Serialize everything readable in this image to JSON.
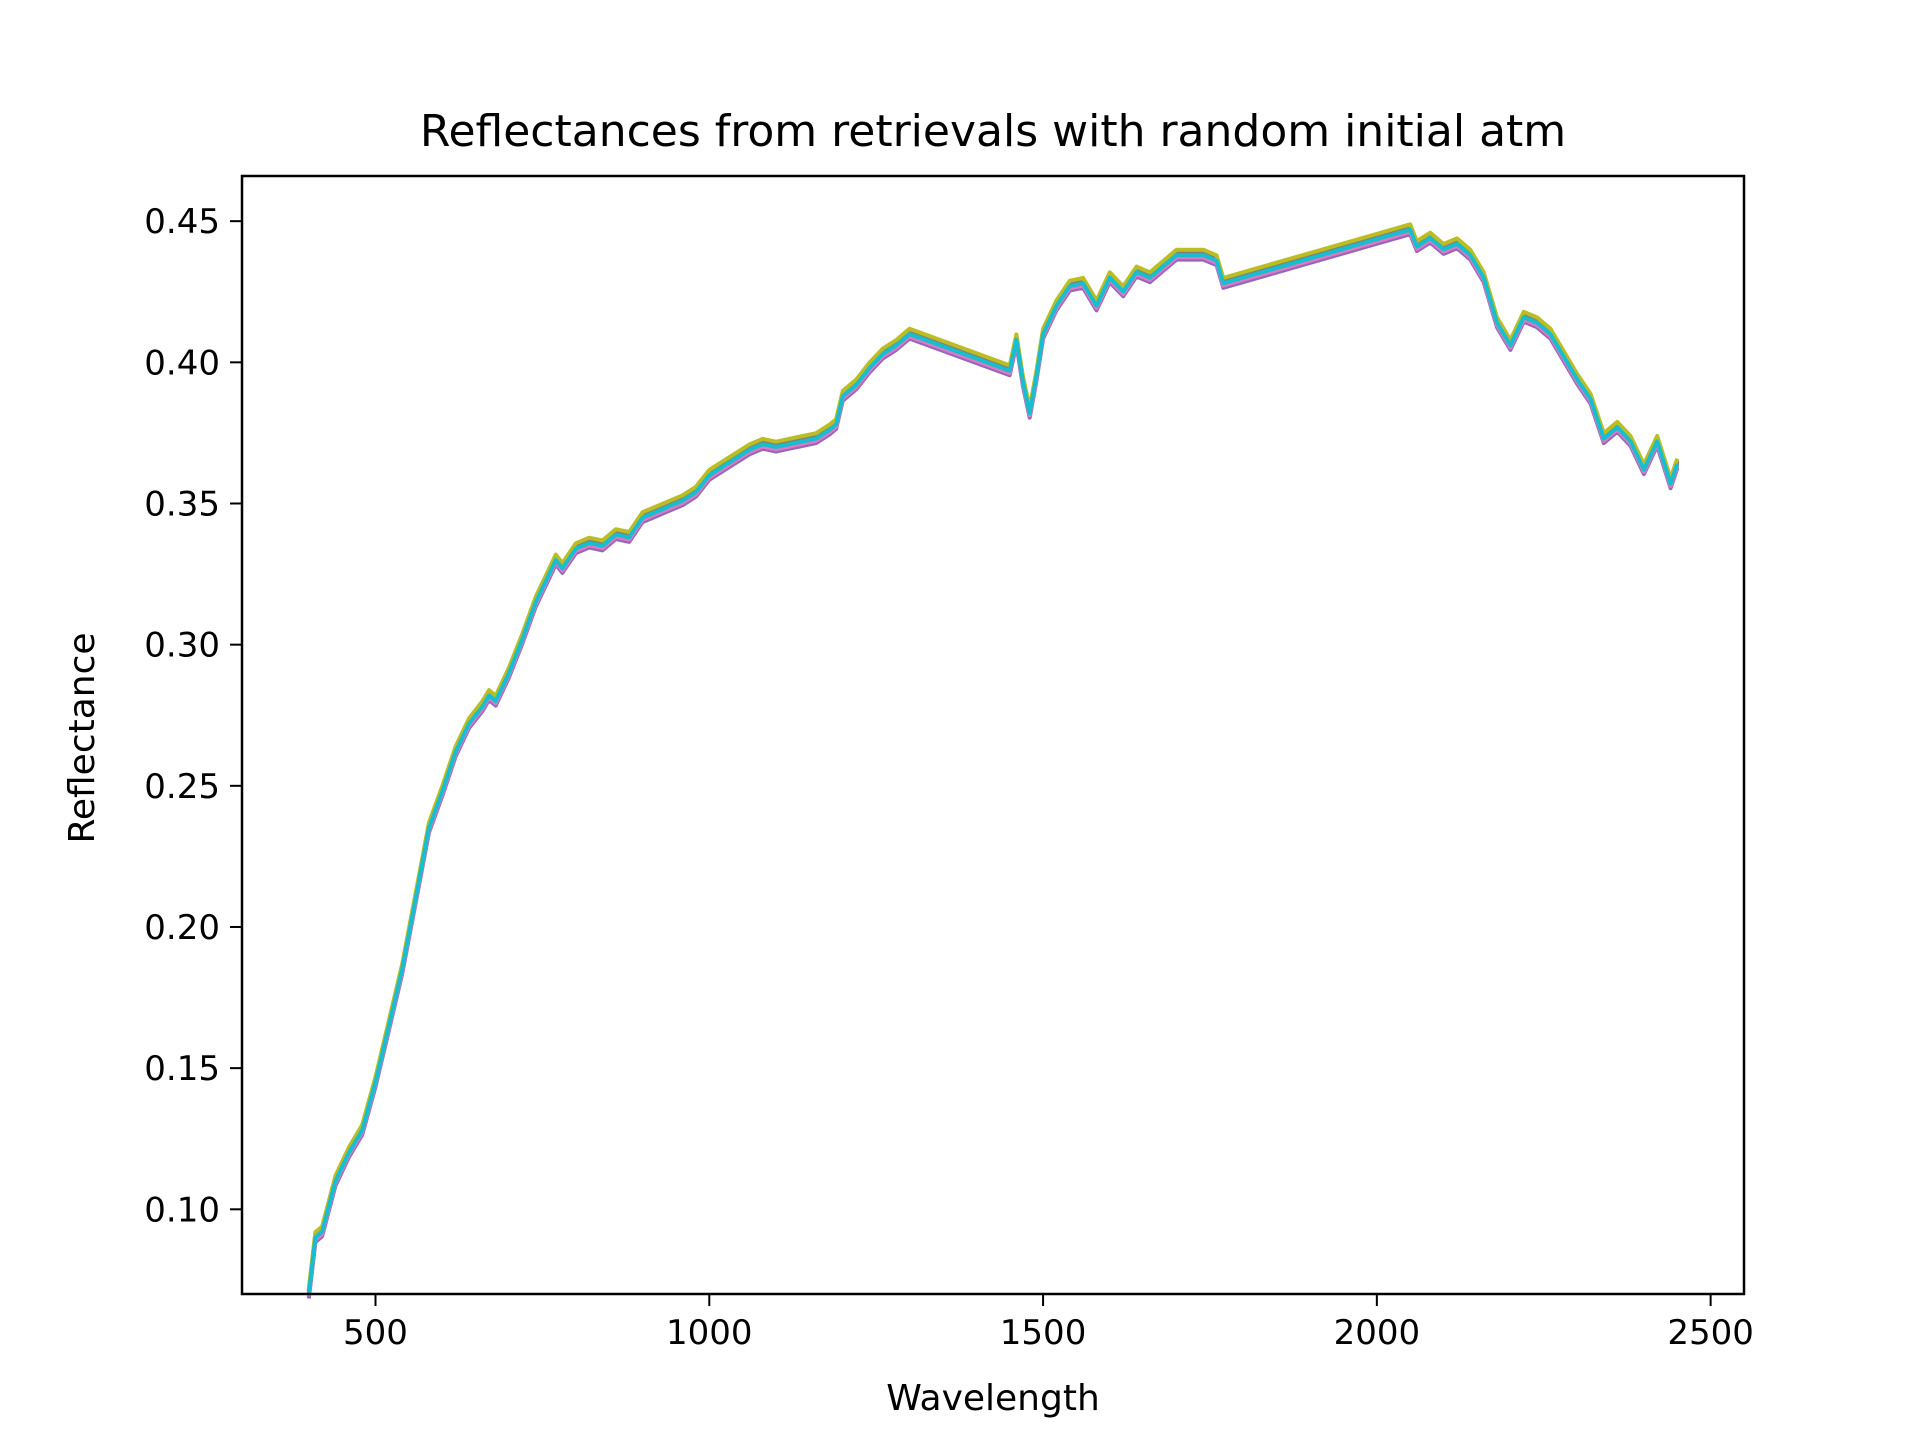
{
  "chart_data": {
    "type": "line",
    "title": "Reflectances from retrievals with random initial atm",
    "xlabel": "Wavelength",
    "ylabel": "Reflectance",
    "xlim": [
      300,
      2550
    ],
    "ylim": [
      0.07,
      0.466
    ],
    "xticks": [
      500,
      1000,
      1500,
      2000,
      2500
    ],
    "xtick_labels": [
      "500",
      "1000",
      "1500",
      "2000",
      "2500"
    ],
    "yticks": [
      0.1,
      0.15,
      0.2,
      0.25,
      0.3,
      0.35,
      0.4,
      0.45
    ],
    "ytick_labels": [
      "0.10",
      "0.15",
      "0.20",
      "0.25",
      "0.30",
      "0.35",
      "0.40",
      "0.45"
    ],
    "grid": false,
    "legend": "none",
    "series_colors": [
      "#1f77b4",
      "#ff7f0e",
      "#2ca02c",
      "#d62728",
      "#9467bd",
      "#8c564b",
      "#e377c2",
      "#7f7f7f",
      "#bcbd22",
      "#17becf"
    ],
    "series_offsets": [
      -0.0012,
      0.0008,
      -0.0004,
      0.0011,
      -0.0016,
      0.0003,
      -0.0008,
      0.0014,
      0.0019,
      0.0
    ],
    "x": [
      400,
      410,
      420,
      440,
      460,
      480,
      500,
      520,
      540,
      560,
      580,
      600,
      620,
      640,
      660,
      670,
      680,
      700,
      720,
      740,
      760,
      770,
      780,
      800,
      820,
      840,
      860,
      880,
      900,
      920,
      940,
      960,
      980,
      1000,
      1020,
      1040,
      1060,
      1080,
      1100,
      1120,
      1140,
      1160,
      1180,
      1190,
      1200,
      1220,
      1240,
      1260,
      1280,
      1300,
      1450,
      1460,
      1470,
      1480,
      1490,
      1500,
      1520,
      1540,
      1560,
      1580,
      1600,
      1620,
      1640,
      1660,
      1680,
      1700,
      1720,
      1740,
      1760,
      1770,
      2050,
      2060,
      2080,
      2100,
      2120,
      2140,
      2160,
      2180,
      2200,
      2220,
      2240,
      2260,
      2280,
      2300,
      2320,
      2340,
      2360,
      2380,
      2400,
      2420,
      2440,
      2450
    ],
    "y": [
      0.07,
      0.09,
      0.092,
      0.11,
      0.12,
      0.128,
      0.145,
      0.165,
      0.185,
      0.21,
      0.235,
      0.248,
      0.262,
      0.272,
      0.278,
      0.282,
      0.28,
      0.29,
      0.302,
      0.315,
      0.325,
      0.33,
      0.327,
      0.334,
      0.336,
      0.335,
      0.339,
      0.338,
      0.345,
      0.347,
      0.349,
      0.351,
      0.354,
      0.36,
      0.363,
      0.366,
      0.369,
      0.371,
      0.37,
      0.371,
      0.372,
      0.373,
      0.376,
      0.378,
      0.388,
      0.392,
      0.398,
      0.403,
      0.406,
      0.41,
      0.397,
      0.408,
      0.393,
      0.382,
      0.395,
      0.41,
      0.42,
      0.427,
      0.428,
      0.42,
      0.43,
      0.425,
      0.432,
      0.43,
      0.434,
      0.438,
      0.438,
      0.438,
      0.436,
      0.428,
      0.447,
      0.441,
      0.444,
      0.44,
      0.442,
      0.438,
      0.43,
      0.414,
      0.406,
      0.416,
      0.414,
      0.41,
      0.402,
      0.394,
      0.387,
      0.373,
      0.377,
      0.372,
      0.362,
      0.372,
      0.357,
      0.364
    ]
  }
}
